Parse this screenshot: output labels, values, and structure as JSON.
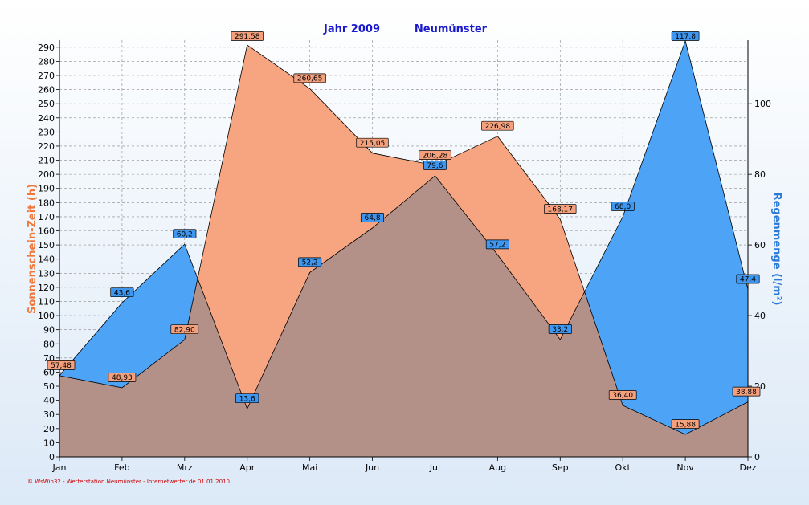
{
  "chart_data": {
    "type": "area",
    "title": "Jahr  2009",
    "subtitle": "Neumünster",
    "categories": [
      "Jan",
      "Feb",
      "Mrz",
      "Apr",
      "Mai",
      "Jun",
      "Jul",
      "Aug",
      "Sep",
      "Okt",
      "Nov",
      "Dez"
    ],
    "ylabel_left": "Sonnenschein-Zeit  (h)",
    "ylabel_right": "Regenmenge  (l/m²)",
    "ylim_left": [
      0,
      295
    ],
    "ylim_right": [
      0,
      118
    ],
    "yticks_left": [
      0,
      10,
      20,
      30,
      40,
      50,
      60,
      70,
      80,
      90,
      100,
      110,
      120,
      130,
      140,
      150,
      160,
      170,
      180,
      190,
      200,
      210,
      220,
      230,
      240,
      250,
      260,
      270,
      280,
      290
    ],
    "yticks_right": [
      0,
      20,
      40,
      60,
      80,
      100
    ],
    "grid": true,
    "series": [
      {
        "name": "Sonnenschein-Zeit",
        "axis": "left",
        "color": "#f7a580",
        "values": [
          57.48,
          48.93,
          82.9,
          291.58,
          260.65,
          215.05,
          206.28,
          226.98,
          168.17,
          36.4,
          15.88,
          38.88
        ],
        "labels": [
          "57,48",
          "48,93",
          "82,90",
          "291,58",
          "260,65",
          "215,05",
          "206,28",
          "226,98",
          "168,17",
          "36,40",
          "15,88",
          "38,88"
        ]
      },
      {
        "name": "Regenmenge",
        "axis": "right",
        "color": "#4da3f5",
        "values": [
          23.0,
          43.6,
          60.2,
          13.6,
          52.2,
          64.8,
          79.6,
          57.2,
          33.2,
          68.0,
          117.8,
          47.4
        ],
        "labels": [
          "",
          "43,6",
          "60,2",
          "13,6",
          "52,2",
          "64,8",
          "79,6",
          "57,2",
          "33,2",
          "68,0",
          "117,8",
          "47,4"
        ]
      }
    ]
  },
  "footer": "© WsWin32 - Wetterstation Neumünster - Internetwetter.de  01.01.2010",
  "colors": {
    "background_top": "#ffffff",
    "background_bottom": "#dce9f7",
    "overlap": "#b39088",
    "title": "#1a1acc"
  }
}
